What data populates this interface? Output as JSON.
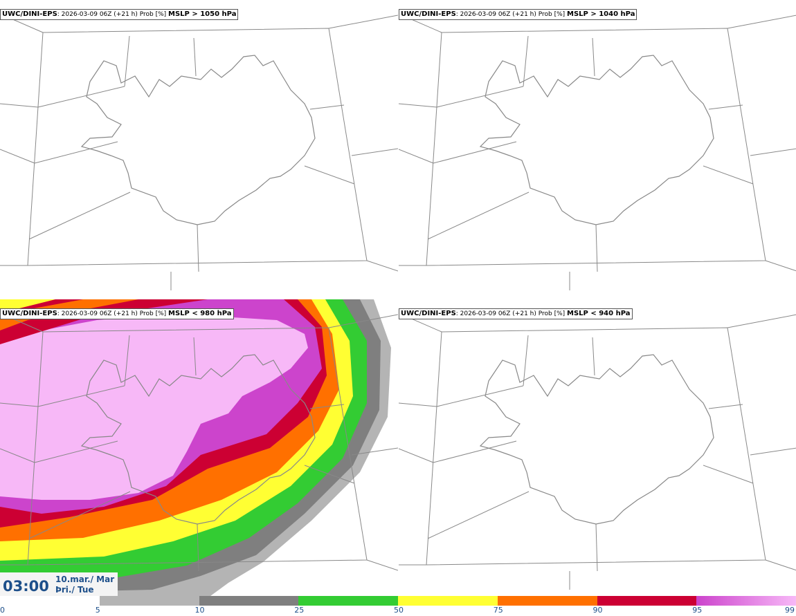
{
  "panels": [
    {
      "source": "UWC/DINI-EPS",
      "info": ": 2026-03-09 06Z (+21 h) Prob [%] ",
      "field": "MSLP > 1050 hPa",
      "filled": false
    },
    {
      "source": "UWC/DINI-EPS",
      "info": ": 2026-03-09 06Z (+21 h) Prob [%] ",
      "field": "MSLP > 1040 hPa",
      "filled": false
    },
    {
      "source": "UWC/DINI-EPS",
      "info": ": 2026-03-09 06Z (+21 h) Prob [%] ",
      "field": "MSLP < 980 hPa",
      "filled": true
    },
    {
      "source": "UWC/DINI-EPS",
      "info": ": 2026-03-09 06Z (+21 h) Prob [%] ",
      "field": "MSLP < 940 hPa",
      "filled": false
    }
  ],
  "valid_time": {
    "clock": "03:00",
    "date_line1": "10.mar./ Mar",
    "date_line2": "Þri./ Tue"
  },
  "colorbar": {
    "ticks": [
      "0",
      "5",
      "10",
      "25",
      "50",
      "75",
      "90",
      "95",
      "99"
    ],
    "colors": [
      "#ffffff",
      "#b4b4b4",
      "#7f7f7f",
      "#33cc33",
      "#ffff33",
      "#ff7000",
      "#cc0033",
      "#cc44cc",
      "#f7b8f7"
    ]
  }
}
